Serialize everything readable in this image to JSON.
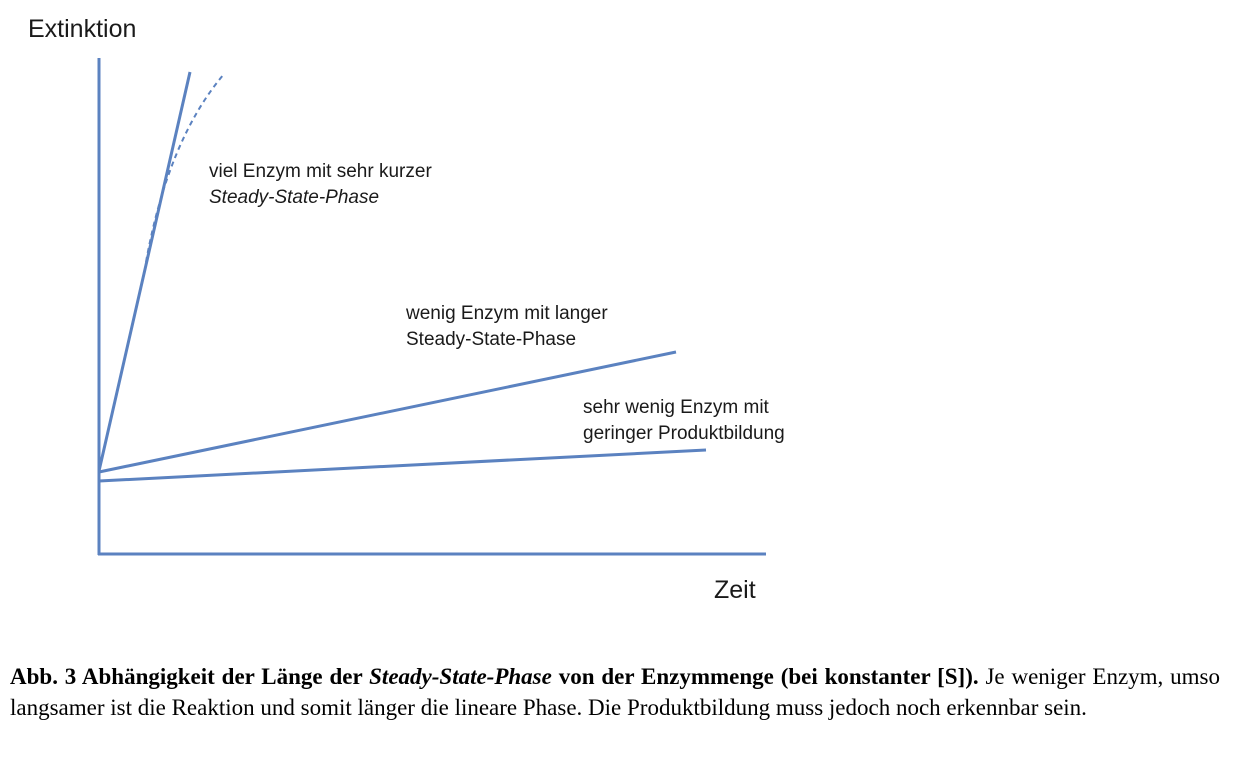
{
  "chart_data": {
    "type": "line",
    "ylabel": "Extinktion",
    "xlabel": "Zeit",
    "colors": {
      "series": "#5b82c0",
      "axis": "#5b82c0"
    },
    "annotations": [
      {
        "line1": "viel Enzym mit sehr kurzer",
        "line2": "Steady-State-Phase",
        "line2_italic": true
      },
      {
        "line1": "wenig Enzym mit langer",
        "line2": "Steady-State-Phase",
        "line2_italic": false
      },
      {
        "line1": "sehr wenig Enzym mit",
        "line2": "geringer Produktbildung",
        "line2_italic": false
      }
    ]
  },
  "caption": {
    "bold_prefix": "Abb. 3 Abhängigkeit der Länge der ",
    "bold_italic": "Steady-State-Phase",
    "bold_suffix": " von der Enzymmenge (bei konstanter [S]).",
    "body": " Je weniger Enzym, umso langsamer ist die Reaktion und somit länger die lineare Phase. Die Produktbildung muss jedoch noch erkennbar sein."
  }
}
